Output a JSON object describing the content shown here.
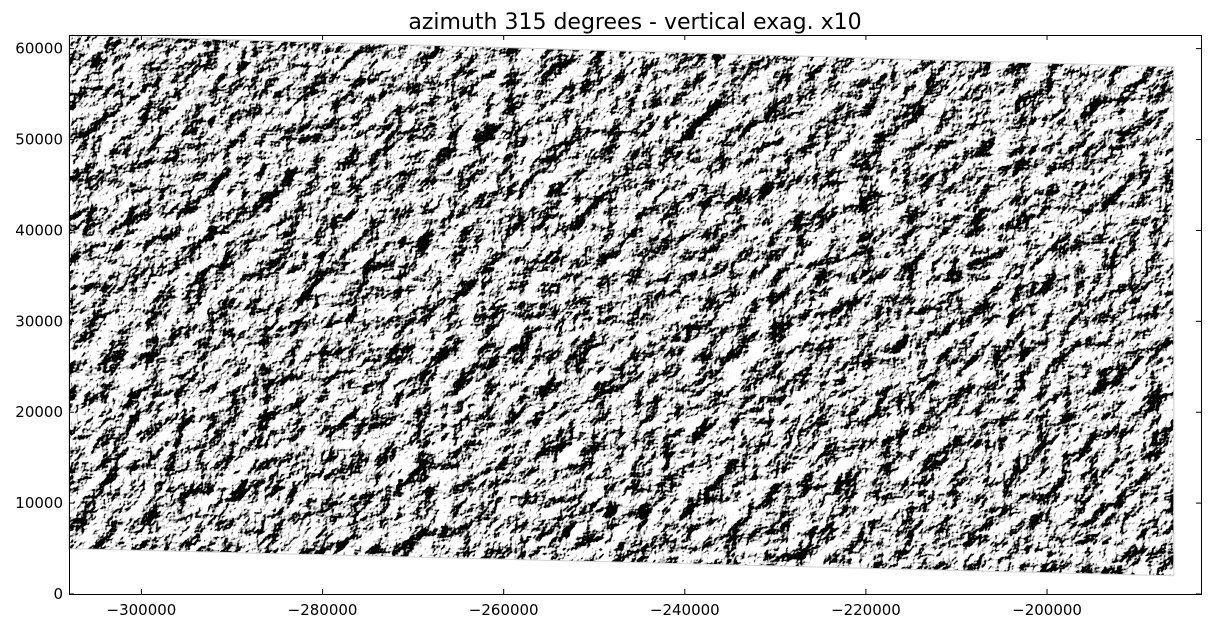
{
  "chart_data": {
    "type": "heatmap",
    "title": "azimuth 315 degrees - vertical exag. x10",
    "xlabel": "",
    "ylabel": "",
    "xlim": [
      -308000,
      -183000
    ],
    "ylim": [
      0,
      61500
    ],
    "x_ticks": [
      -300000,
      -280000,
      -260000,
      -240000,
      -220000,
      -200000
    ],
    "x_tick_labels": [
      "−300000",
      "−280000",
      "−260000",
      "−240000",
      "−220000",
      "−200000"
    ],
    "y_ticks": [
      0,
      10000,
      20000,
      30000,
      40000,
      50000,
      60000
    ],
    "y_tick_labels": [
      "0",
      "10000",
      "20000",
      "30000",
      "40000",
      "50000",
      "60000"
    ],
    "colormap": "gray",
    "grid": false,
    "data_footprint": {
      "description": "hillshaded relief, rotated survey rectangle",
      "corners": [
        [
          -308000,
          5000
        ],
        [
          -308000,
          61500
        ],
        [
          -186000,
          58000
        ],
        [
          -186000,
          2000
        ]
      ]
    },
    "colors": {
      "background": "#ffffff",
      "frame": "#000000"
    }
  }
}
